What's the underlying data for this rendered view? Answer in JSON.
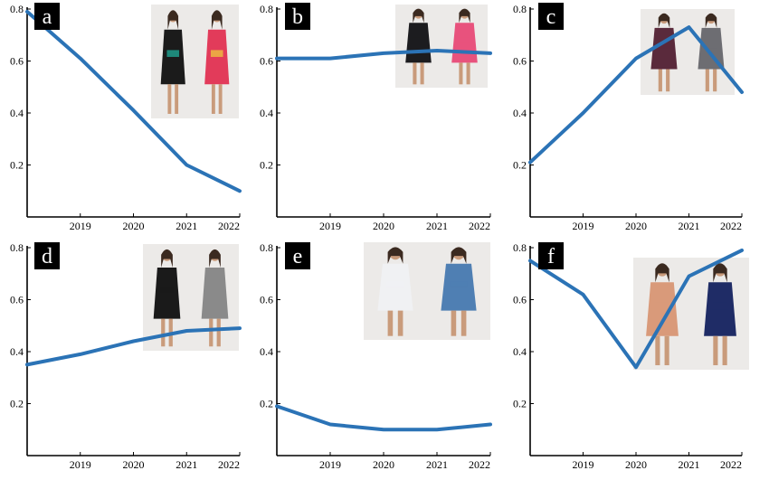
{
  "colors": {
    "line": "#2b73b6",
    "axis": "#000000",
    "panel_badge_bg": "#000000",
    "panel_badge_text": "#ffffff"
  },
  "chart_data": [
    {
      "panel": "a",
      "type": "line",
      "x": [
        2018,
        2019,
        2020,
        2021,
        2022
      ],
      "x_tick_labels": [
        "2019",
        "2020",
        "2021",
        "2022"
      ],
      "y_tick_labels": [
        "0.2",
        "0.4",
        "0.6",
        "0.8"
      ],
      "series": [
        {
          "values": [
            0.79,
            0.61,
            0.41,
            0.2,
            0.1
          ]
        }
      ],
      "xlim": [
        2018,
        2022
      ],
      "ylim": [
        0,
        0.8
      ],
      "grid": false,
      "photo": {
        "name": "patterned-bodycon-dresses-photo",
        "colors": [
          "#1b1b1b",
          "#e23b5a",
          "#1fb6a3",
          "#f0d23c"
        ]
      }
    },
    {
      "panel": "b",
      "type": "line",
      "x": [
        2018,
        2019,
        2020,
        2021,
        2022
      ],
      "x_tick_labels": [
        "2019",
        "2020",
        "2021",
        "2022"
      ],
      "y_tick_labels": [
        "0.2",
        "0.4",
        "0.6",
        "0.8"
      ],
      "series": [
        {
          "values": [
            0.61,
            0.61,
            0.63,
            0.64,
            0.63
          ]
        }
      ],
      "xlim": [
        2018,
        2022
      ],
      "ylim": [
        0,
        0.8
      ],
      "grid": false,
      "photo": {
        "name": "lace-skater-dresses-photo",
        "colors": [
          "#1c1c1f",
          "#e8527d"
        ]
      }
    },
    {
      "panel": "c",
      "type": "line",
      "x": [
        2018,
        2019,
        2020,
        2021,
        2022
      ],
      "x_tick_labels": [
        "2019",
        "2020",
        "2021",
        "2022"
      ],
      "y_tick_labels": [
        "0.2",
        "0.4",
        "0.6",
        "0.8"
      ],
      "series": [
        {
          "values": [
            0.21,
            0.4,
            0.61,
            0.73,
            0.48
          ]
        }
      ],
      "xlim": [
        2018,
        2022
      ],
      "ylim": [
        0,
        0.8
      ],
      "grid": false,
      "photo": {
        "name": "poncho-cape-photo",
        "colors": [
          "#5a2a3c",
          "#6d6d72"
        ]
      }
    },
    {
      "panel": "d",
      "type": "line",
      "x": [
        2018,
        2019,
        2020,
        2021,
        2022
      ],
      "x_tick_labels": [
        "2019",
        "2020",
        "2021",
        "2022"
      ],
      "y_tick_labels": [
        "0.2",
        "0.4",
        "0.6",
        "0.8"
      ],
      "series": [
        {
          "values": [
            0.35,
            0.39,
            0.44,
            0.48,
            0.49
          ]
        }
      ],
      "xlim": [
        2018,
        2022
      ],
      "ylim": [
        0,
        0.8
      ],
      "grid": false,
      "photo": {
        "name": "jogger-pants-photo",
        "colors": [
          "#1a1a1a",
          "#8a8a8a"
        ]
      }
    },
    {
      "panel": "e",
      "type": "line",
      "x": [
        2018,
        2019,
        2020,
        2021,
        2022
      ],
      "x_tick_labels": [
        "2019",
        "2020",
        "2021",
        "2022"
      ],
      "y_tick_labels": [
        "0.2",
        "0.4",
        "0.6",
        "0.8"
      ],
      "series": [
        {
          "values": [
            0.19,
            0.12,
            0.1,
            0.1,
            0.12
          ]
        }
      ],
      "xlim": [
        2018,
        2022
      ],
      "ylim": [
        0,
        0.8
      ],
      "grid": false,
      "photo": {
        "name": "denim-jackets-photo",
        "colors": [
          "#f0f1f3",
          "#4f7fb3"
        ]
      }
    },
    {
      "panel": "f",
      "type": "line",
      "x": [
        2018,
        2019,
        2020,
        2021,
        2022
      ],
      "x_tick_labels": [
        "2019",
        "2020",
        "2021",
        "2022"
      ],
      "y_tick_labels": [
        "0.2",
        "0.4",
        "0.6",
        "0.8"
      ],
      "series": [
        {
          "values": [
            0.75,
            0.62,
            0.34,
            0.69,
            0.79
          ]
        }
      ],
      "xlim": [
        2018,
        2022
      ],
      "ylim": [
        0,
        0.8
      ],
      "grid": false,
      "photo": {
        "name": "smock-dresses-photo",
        "colors": [
          "#d99a7a",
          "#1f2c66"
        ]
      }
    }
  ]
}
